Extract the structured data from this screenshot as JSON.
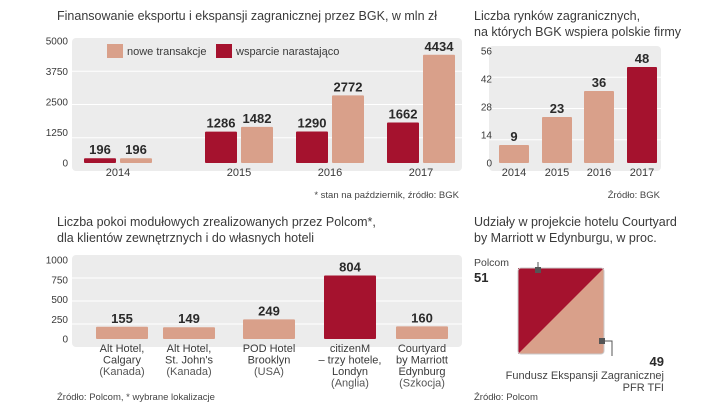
{
  "colors": {
    "light": "#d9a08a",
    "dark": "#a5122e",
    "panel": "#ececec",
    "grid": "#ffffff",
    "text": "#3a3a3a"
  },
  "chart_data": [
    {
      "type": "bar",
      "title": "Finansowanie eksportu i ekspansji zagranicznej przez BGK, w mln zł",
      "categories": [
        "2014",
        "2015",
        "2016",
        "2017"
      ],
      "series": [
        {
          "name": "wsparcie narastająco",
          "values": [
            196,
            1286,
            1290,
            1662
          ]
        },
        {
          "name": "nowe transakcje",
          "values": [
            196,
            1482,
            2772,
            4434
          ]
        }
      ],
      "legend": [
        "nowe transakcje",
        "wsparcie narastająco"
      ],
      "yticks": [
        "5000",
        "3750",
        "2500",
        "1250",
        "0"
      ],
      "ylim": [
        0,
        5000
      ],
      "note": "* stan na październik, źródło: BGK"
    },
    {
      "type": "bar",
      "title": "Liczba rynków zagranicznych,",
      "title2": "na których BGK wspiera polskie firmy",
      "categories": [
        "2014",
        "2015",
        "2016",
        "2017"
      ],
      "values": [
        9,
        23,
        36,
        48
      ],
      "yticks": [
        "56",
        "42",
        "28",
        "14",
        "0"
      ],
      "ylim": [
        0,
        56
      ],
      "note": "Źródło: BGK"
    },
    {
      "type": "bar",
      "title": "Liczba pokoi modułowych zrealizowanych przez Polcom*,",
      "title2": "dla klientów zewnętrznych i do własnych hoteli",
      "categories": [
        [
          "Alt Hotel,",
          "Calgary",
          "(Kanada)"
        ],
        [
          "Alt Hotel,",
          "St. John's",
          "(Kanada)"
        ],
        [
          "POD Hotel",
          "Brooklyn",
          "(USA)"
        ],
        [
          "citizenM",
          "– trzy hotele,",
          "Londyn",
          "(Anglia)"
        ],
        [
          "Courtyard",
          "by Marriott",
          "Edynburg",
          "(Szkocja)"
        ]
      ],
      "values": [
        155,
        149,
        249,
        804,
        160
      ],
      "yticks": [
        "1000",
        "750",
        "500",
        "250",
        "0"
      ],
      "ylim": [
        0,
        1000
      ],
      "note": "Źródło: Polcom, * wybrane lokalizacje"
    },
    {
      "type": "area",
      "title": "Udziały w projekcie hotelu Courtyard",
      "title2": "by Marriott w Edynburgu, w proc.",
      "shares": [
        {
          "name": "Polcom",
          "value": 51
        },
        {
          "name": "Fundusz Ekspansji Zagranicznej",
          "name2": "PFR TFI",
          "value": 49
        }
      ],
      "note": "Źródło: Polcom"
    }
  ]
}
